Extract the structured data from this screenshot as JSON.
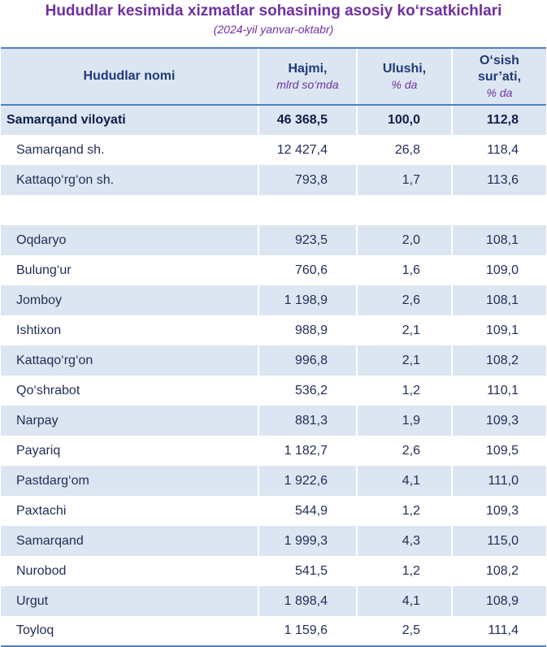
{
  "title": "Hududlar kesimida xizmatlar sohasining asosiy ko‘rsatkichlari",
  "subtitle": "(2024-yil yanvar-oktabr)",
  "columns": {
    "name": "Hududlar nomi",
    "volume": "Hajmi,",
    "volume_unit": "mlrd so‘mda",
    "share": "Ulushi,",
    "share_unit": "% da",
    "growth_line1": "O‘sish",
    "growth_line2": "sur’ati,",
    "growth_unit": "% da"
  },
  "rows": [
    {
      "name": "Samarqand viloyati",
      "volume": "46 368,5",
      "share": "100,0",
      "growth": "112,8"
    },
    {
      "name": "Samarqand sh.",
      "volume": "12 427,4",
      "share": "26,8",
      "growth": "118,4"
    },
    {
      "name": "Kattaqo‘rg‘on sh.",
      "volume": "793,8",
      "share": "1,7",
      "growth": "113,6"
    },
    {
      "name": "",
      "volume": "",
      "share": "",
      "growth": ""
    },
    {
      "name": "Oqdaryo",
      "volume": "923,5",
      "share": "2,0",
      "growth": "108,1"
    },
    {
      "name": "Bulung‘ur",
      "volume": "760,6",
      "share": "1,6",
      "growth": "109,0"
    },
    {
      "name": "Jomboy",
      "volume": "1 198,9",
      "share": "2,6",
      "growth": "108,1"
    },
    {
      "name": "Ishtixon",
      "volume": "988,9",
      "share": "2,1",
      "growth": "109,1"
    },
    {
      "name": "Kattaqo‘rg‘on",
      "volume": "996,8",
      "share": "2,1",
      "growth": "108,2"
    },
    {
      "name": "Qo‘shrabot",
      "volume": "536,2",
      "share": "1,2",
      "growth": "110,1"
    },
    {
      "name": "Narpay",
      "volume": "881,3",
      "share": "1,9",
      "growth": "109,3"
    },
    {
      "name": "Payariq",
      "volume": "1 182,7",
      "share": "2,6",
      "growth": "109,5"
    },
    {
      "name": "Pastdarg‘om",
      "volume": "1 922,6",
      "share": "4,1",
      "growth": "111,0"
    },
    {
      "name": "Paxtachi",
      "volume": "544,9",
      "share": "1,2",
      "growth": "109,3"
    },
    {
      "name": "Samarqand",
      "volume": "1 999,3",
      "share": "4,3",
      "growth": "115,0"
    },
    {
      "name": "Nurobod",
      "volume": "541,5",
      "share": "1,2",
      "growth": "108,2"
    },
    {
      "name": "Urgut",
      "volume": "1 898,4",
      "share": "4,1",
      "growth": "108,9"
    },
    {
      "name": "Toyloq",
      "volume": "1 159,6",
      "share": "2,5",
      "growth": "111,4"
    }
  ]
}
